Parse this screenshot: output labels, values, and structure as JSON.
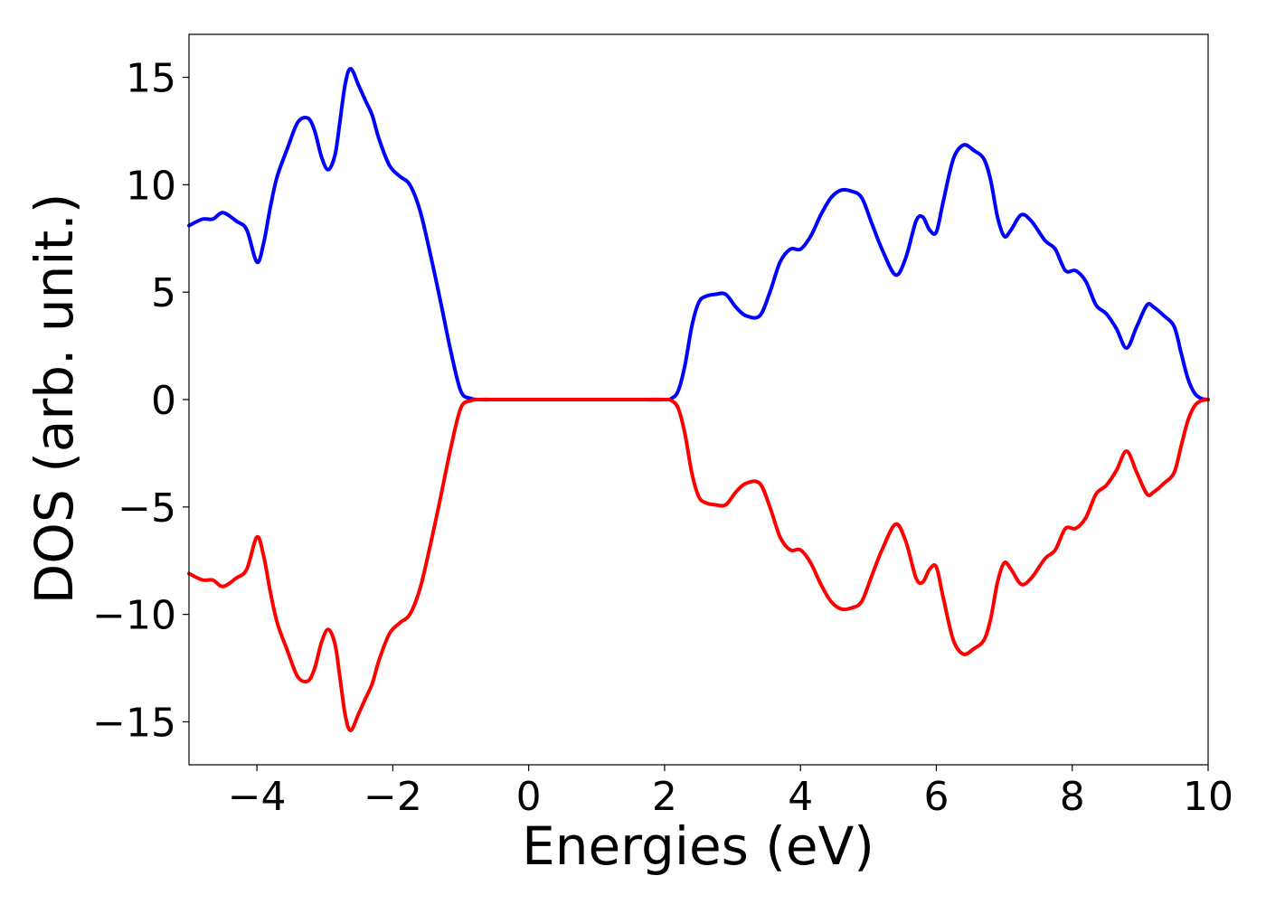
{
  "chart_data": {
    "type": "line",
    "title": "",
    "xlabel": "Energies (eV)",
    "ylabel": "DOS (arb. unit.)",
    "xlim": [
      -5,
      10
    ],
    "ylim": [
      -17,
      17
    ],
    "xticks": [
      -4,
      -2,
      0,
      2,
      4,
      6,
      8,
      10
    ],
    "xtick_labels": [
      "−4",
      "−2",
      "0",
      "2",
      "4",
      "6",
      "8",
      "10"
    ],
    "yticks": [
      15,
      10,
      5,
      0,
      -5,
      -10,
      -15
    ],
    "ytick_labels": [
      "15",
      "10",
      "5",
      "0",
      "−5",
      "−10",
      "−15"
    ],
    "grid": false,
    "legend": "none",
    "series": [
      {
        "color": "#0000ff",
        "x": [
          -5.0,
          -4.8,
          -4.65,
          -4.5,
          -4.3,
          -4.15,
          -4.0,
          -3.9,
          -3.8,
          -3.7,
          -3.55,
          -3.4,
          -3.25,
          -3.15,
          -3.05,
          -2.95,
          -2.85,
          -2.78,
          -2.7,
          -2.62,
          -2.5,
          -2.4,
          -2.3,
          -2.2,
          -2.05,
          -1.9,
          -1.75,
          -1.6,
          -1.45,
          -1.3,
          -1.15,
          -1.0,
          -0.85,
          -0.7,
          -0.5,
          -0.3,
          0.0,
          0.5,
          1.0,
          1.5,
          2.0,
          2.1,
          2.2,
          2.3,
          2.4,
          2.5,
          2.6,
          2.75,
          2.9,
          3.05,
          3.2,
          3.4,
          3.55,
          3.7,
          3.85,
          4.0,
          4.15,
          4.3,
          4.45,
          4.6,
          4.75,
          4.9,
          5.05,
          5.2,
          5.4,
          5.55,
          5.7,
          5.8,
          5.9,
          6.0,
          6.1,
          6.25,
          6.4,
          6.55,
          6.7,
          6.8,
          6.9,
          7.0,
          7.1,
          7.25,
          7.4,
          7.6,
          7.75,
          7.9,
          8.05,
          8.2,
          8.35,
          8.5,
          8.65,
          8.8,
          8.95,
          9.1,
          9.2,
          9.35,
          9.5,
          9.6,
          9.7,
          9.8,
          9.9,
          10.0
        ],
        "values": [
          8.1,
          8.4,
          8.4,
          8.7,
          8.3,
          7.9,
          6.4,
          7.3,
          9.0,
          10.4,
          11.7,
          12.9,
          13.1,
          12.5,
          11.3,
          10.7,
          11.4,
          12.9,
          14.7,
          15.4,
          14.6,
          13.9,
          13.2,
          12.1,
          10.9,
          10.4,
          10.0,
          8.8,
          6.8,
          4.6,
          2.3,
          0.4,
          0.05,
          0.0,
          0.0,
          0.0,
          0.0,
          0.0,
          0.0,
          0.0,
          0.0,
          0.05,
          0.4,
          1.6,
          3.4,
          4.5,
          4.8,
          4.9,
          4.9,
          4.3,
          3.9,
          3.9,
          5.0,
          6.4,
          7.0,
          7.0,
          7.6,
          8.6,
          9.4,
          9.75,
          9.7,
          9.4,
          8.2,
          7.0,
          5.8,
          6.6,
          8.3,
          8.5,
          7.9,
          7.8,
          9.2,
          11.2,
          11.85,
          11.6,
          11.2,
          10.2,
          8.5,
          7.6,
          7.9,
          8.6,
          8.3,
          7.4,
          7.0,
          6.0,
          6.0,
          5.5,
          4.4,
          4.0,
          3.3,
          2.4,
          3.4,
          4.4,
          4.3,
          3.9,
          3.4,
          2.2,
          1.0,
          0.3,
          0.05,
          0.0
        ]
      },
      {
        "color": "#ff0000",
        "x": [
          -5.0,
          -4.8,
          -4.65,
          -4.5,
          -4.3,
          -4.15,
          -4.0,
          -3.9,
          -3.8,
          -3.7,
          -3.55,
          -3.4,
          -3.25,
          -3.15,
          -3.05,
          -2.95,
          -2.85,
          -2.78,
          -2.7,
          -2.62,
          -2.5,
          -2.4,
          -2.3,
          -2.2,
          -2.05,
          -1.9,
          -1.75,
          -1.6,
          -1.45,
          -1.3,
          -1.15,
          -1.0,
          -0.85,
          -0.7,
          -0.5,
          -0.3,
          0.0,
          0.5,
          1.0,
          1.5,
          2.0,
          2.1,
          2.2,
          2.3,
          2.4,
          2.5,
          2.6,
          2.75,
          2.9,
          3.05,
          3.2,
          3.4,
          3.55,
          3.7,
          3.85,
          4.0,
          4.15,
          4.3,
          4.45,
          4.6,
          4.75,
          4.9,
          5.05,
          5.2,
          5.4,
          5.55,
          5.7,
          5.8,
          5.9,
          6.0,
          6.1,
          6.25,
          6.4,
          6.55,
          6.7,
          6.8,
          6.9,
          7.0,
          7.1,
          7.25,
          7.4,
          7.6,
          7.75,
          7.9,
          8.05,
          8.2,
          8.35,
          8.5,
          8.65,
          8.8,
          8.95,
          9.1,
          9.2,
          9.35,
          9.5,
          9.6,
          9.7,
          9.8,
          9.9,
          10.0
        ],
        "values": [
          -8.1,
          -8.4,
          -8.4,
          -8.7,
          -8.3,
          -7.9,
          -6.4,
          -7.3,
          -9.0,
          -10.4,
          -11.7,
          -12.9,
          -13.1,
          -12.5,
          -11.3,
          -10.7,
          -11.4,
          -12.9,
          -14.7,
          -15.4,
          -14.6,
          -13.9,
          -13.2,
          -12.1,
          -10.9,
          -10.4,
          -10.0,
          -8.8,
          -6.8,
          -4.6,
          -2.3,
          -0.4,
          -0.05,
          0.0,
          0.0,
          0.0,
          0.0,
          0.0,
          0.0,
          0.0,
          0.0,
          -0.05,
          -0.4,
          -1.6,
          -3.4,
          -4.5,
          -4.8,
          -4.9,
          -4.9,
          -4.3,
          -3.9,
          -3.9,
          -5.0,
          -6.4,
          -7.0,
          -7.0,
          -7.6,
          -8.6,
          -9.4,
          -9.75,
          -9.7,
          -9.4,
          -8.2,
          -7.0,
          -5.8,
          -6.6,
          -8.3,
          -8.5,
          -7.9,
          -7.8,
          -9.2,
          -11.2,
          -11.85,
          -11.6,
          -11.2,
          -10.2,
          -8.5,
          -7.6,
          -7.9,
          -8.6,
          -8.3,
          -7.4,
          -7.0,
          -6.0,
          -6.0,
          -5.5,
          -4.4,
          -4.0,
          -3.3,
          -2.4,
          -3.4,
          -4.4,
          -4.3,
          -3.9,
          -3.4,
          -2.2,
          -1.0,
          -0.3,
          -0.05,
          0.0
        ]
      }
    ]
  }
}
